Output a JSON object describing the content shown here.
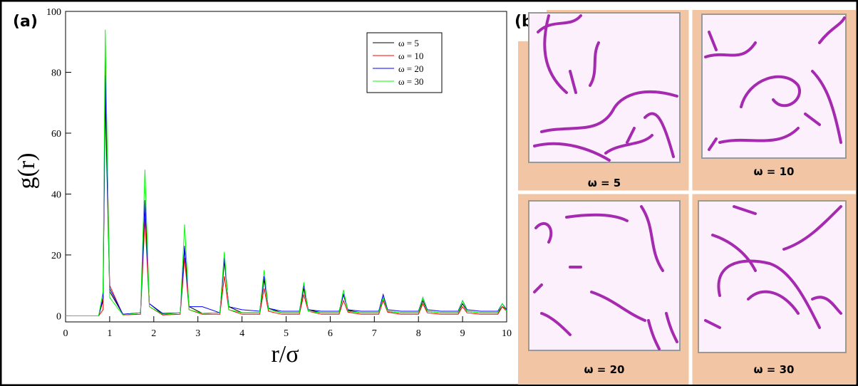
{
  "chart_data": {
    "type": "line",
    "panel_label": "(a)",
    "x_label": "r/σ",
    "y_label": "g(r)",
    "x": [
      0,
      0.75,
      0.85,
      0.9,
      1.0,
      1.3,
      1.7,
      1.8,
      1.9,
      2.2,
      2.6,
      2.7,
      2.8,
      3.1,
      3.5,
      3.6,
      3.7,
      4.0,
      4.4,
      4.5,
      4.6,
      4.9,
      5.3,
      5.4,
      5.5,
      5.8,
      6.2,
      6.3,
      6.4,
      6.7,
      7.1,
      7.2,
      7.3,
      7.6,
      8.0,
      8.1,
      8.2,
      8.5,
      8.9,
      9.0,
      9.1,
      9.4,
      9.8,
      9.9,
      10
    ],
    "series": [
      {
        "name": "ω = 5",
        "color": "#000000",
        "values": [
          0,
          0,
          5,
          72,
          8,
          0.5,
          1,
          36,
          4,
          0.5,
          1,
          22,
          3,
          0.8,
          1,
          18,
          3,
          1,
          1,
          12,
          2.5,
          1,
          1,
          9,
          2,
          1,
          1,
          7,
          1.8,
          1,
          1,
          6,
          1.5,
          1,
          1,
          5,
          1.5,
          1,
          1,
          4,
          1.5,
          1,
          1,
          3,
          2
        ]
      },
      {
        "name": "ω = 10",
        "color": "#ff0000",
        "values": [
          0,
          0,
          2,
          87,
          10,
          0.3,
          0.5,
          32,
          3,
          0.3,
          0.5,
          19,
          2,
          0.5,
          0.5,
          13,
          2,
          0.5,
          0.5,
          9,
          1.5,
          0.5,
          0.5,
          7,
          1.5,
          0.5,
          0.5,
          5,
          1.2,
          0.5,
          0.5,
          5,
          1.2,
          0.5,
          0.5,
          4,
          1,
          0.5,
          0.5,
          3,
          1,
          0.5,
          0.5,
          3,
          1.5
        ]
      },
      {
        "name": "ω = 20",
        "color": "#0000ff",
        "values": [
          0,
          0,
          6,
          79,
          9,
          0.5,
          1,
          38,
          4,
          0.8,
          1,
          23,
          3,
          3,
          1,
          19,
          3,
          2,
          1.5,
          13,
          2.5,
          1.5,
          1.5,
          10,
          2,
          1.5,
          1.5,
          7,
          2,
          1.5,
          1.5,
          7,
          2,
          1.5,
          1.5,
          6,
          2,
          1.5,
          1.5,
          5,
          2,
          1.5,
          1.5,
          4,
          2
        ]
      },
      {
        "name": "ω = 30",
        "color": "#00ff00",
        "values": [
          0,
          0,
          8,
          94,
          6,
          0.3,
          1,
          48,
          3,
          0.5,
          1,
          30,
          2,
          0.8,
          1,
          21,
          2,
          1,
          1,
          15,
          2,
          1,
          1,
          11,
          1.5,
          1,
          1,
          8.5,
          1.5,
          1,
          1,
          6,
          1.5,
          1,
          1,
          6,
          1.5,
          1,
          1,
          5,
          1.5,
          1,
          1,
          4,
          1.5
        ]
      }
    ],
    "xlim": [
      0,
      10
    ],
    "ylim": [
      -2,
      100
    ],
    "xticks": [
      0,
      1,
      2,
      3,
      4,
      5,
      6,
      7,
      8,
      9,
      10
    ],
    "yticks": [
      0,
      20,
      40,
      60,
      80,
      100
    ],
    "legend": "upper right"
  },
  "panel_b": {
    "label": "(b)",
    "captions": [
      "ω = 5",
      "ω = 10",
      "ω = 20",
      "ω = 30"
    ]
  }
}
